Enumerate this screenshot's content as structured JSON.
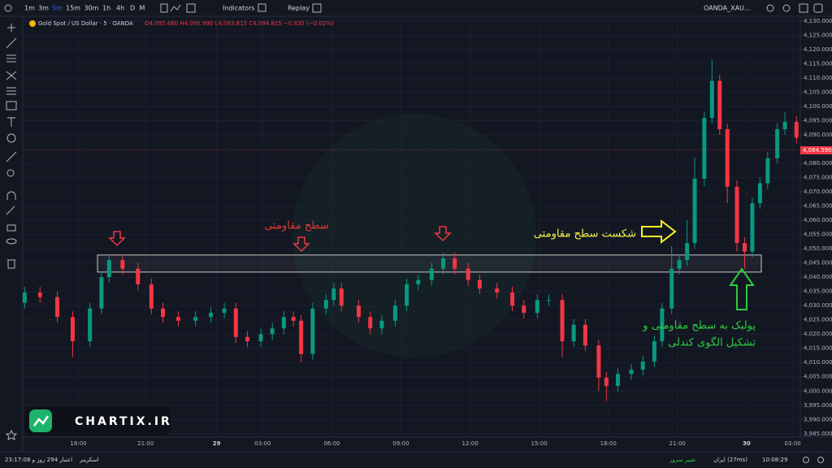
{
  "toolbar": {
    "intervals": [
      "1m",
      "3m",
      "5m",
      "15m",
      "30m",
      "1h",
      "4h",
      "D",
      "M"
    ],
    "indicators": "Indicators",
    "replay": "Replay",
    "symbol": "OANDA_XAU..."
  },
  "legend": {
    "symbol": "Gold Spot / US Dollar · 5 · OANDA",
    "ohlc": "O4,095.660 H4,095.990 L4,093.815 C4,094.815 −0.835 (−0.02%)"
  },
  "chart_data": {
    "type": "candlestick",
    "x": [
      1,
      9,
      18,
      26,
      35,
      41,
      45,
      52,
      60,
      67,
      73,
      81,
      90,
      98,
      105,
      111,
      117,
      124,
      130,
      136,
      141,
      145,
      151,
      158,
      162,
      166,
      175,
      181,
      187,
      194,
      200,
      206,
      213,
      219,
      225,
      232,
      238,
      247,
      255,
      261,
      268,
      274,
      281,
      287,
      293,
      300,
      304,
      310,
      317,
      323,
      329,
      333,
      338,
      342,
      346,
      350,
      355,
      359,
      363,
      367,
      372,
      376,
      380,
      384,
      388,
      393,
      397,
      403
    ],
    "open": [
      4031,
      4034.6,
      4033,
      4026,
      4017.5,
      4029,
      4040,
      4046,
      4043,
      4037.5,
      4029,
      4026,
      4024.7,
      4026,
      4027.5,
      4029,
      4019,
      4017.5,
      4020,
      4022,
      4026,
      4024.7,
      4013,
      4029,
      4032,
      4036,
      4030,
      4026,
      4022,
      4024.7,
      4030,
      4037.5,
      4039,
      4043,
      4046.6,
      4043,
      4039,
      4036,
      4034.6,
      4030,
      4027.5,
      4032,
      4032,
      4017.5,
      4023.3,
      4016,
      4004.7,
      4001.8,
      4006,
      4007.5,
      4010.4,
      4017.5,
      4029,
      4043,
      4046,
      4052,
      4074.6,
      4096,
      4109,
      4092,
      4071.8,
      4052,
      4049,
      4066,
      4073,
      4081.8,
      4092,
      4094.6
    ],
    "high": [
      4036.6,
      4036.6,
      4035,
      4028,
      4031,
      4042,
      4048,
      4048,
      4045,
      4039.5,
      4031,
      4028,
      4028,
      4029.5,
      4031,
      4031,
      4021,
      4022,
      4024,
      4028,
      4028,
      4026.7,
      4031,
      4034,
      4038,
      4038,
      4032,
      4028,
      4026.7,
      4032,
      4039.5,
      4041,
      4045,
      4048.6,
      4048.6,
      4045,
      4041,
      4038,
      4036.6,
      4032,
      4034,
      4034,
      4034,
      4025.3,
      4025.3,
      4018,
      4006.7,
      4008,
      4009.5,
      4012.4,
      4019.5,
      4031,
      4051,
      4048,
      4060,
      4082,
      4098,
      4116.5,
      4111,
      4094,
      4074,
      4054,
      4068,
      4075,
      4084,
      4094,
      4098,
      4096.6
    ],
    "low": [
      4029,
      4031,
      4024,
      4012,
      4015.5,
      4027,
      4038,
      4041,
      4035.5,
      4027,
      4024,
      4022.7,
      4022.7,
      4024,
      4025.5,
      4017,
      4015.5,
      4015.5,
      4018,
      4020,
      4022.7,
      4010,
      4011,
      4027,
      4030,
      4028,
      4024,
      4020,
      4020,
      4022.7,
      4028,
      4035.5,
      4037,
      4041,
      4041,
      4037,
      4034,
      4032.6,
      4028,
      4025.5,
      4025.5,
      4030,
      4012,
      4015.5,
      4014,
      4000,
      3996.5,
      3999.8,
      4004,
      4005.5,
      4008.4,
      4015.5,
      4027,
      4041,
      4044,
      4050,
      4072,
      4094,
      4090,
      4066,
      4049,
      4043,
      4047,
      4064,
      4071,
      4080,
      4090,
      4087
    ],
    "close": [
      4034.6,
      4033,
      4026,
      4017.5,
      4029,
      4040,
      4046,
      4043,
      4037.5,
      4029,
      4026,
      4024.7,
      4026,
      4027.5,
      4029,
      4019,
      4017.5,
      4020,
      4022,
      4026,
      4024.7,
      4013,
      4029,
      4032,
      4036,
      4030,
      4026,
      4022,
      4024.7,
      4030,
      4037.5,
      4039,
      4043,
      4046.6,
      4043,
      4039,
      4036,
      4034.6,
      4030,
      4027.5,
      4032,
      4032,
      4017.5,
      4023.3,
      4016,
      4004.7,
      4001.8,
      4006,
      4007.5,
      4010.4,
      4017.5,
      4029,
      4043,
      4046,
      4052,
      4074.6,
      4096,
      4109,
      4092,
      4071.8,
      4052,
      4049,
      4066,
      4073,
      4081.8,
      4092,
      4094.6,
      4089
    ],
    "up_color": "#089981",
    "down_color": "#f23645",
    "xlim": [
      0,
      405
    ],
    "xticks": [
      {
        "value": 29,
        "label": "18:00"
      },
      {
        "value": 64,
        "label": "21:00"
      },
      {
        "value": 101,
        "label": "29"
      },
      {
        "value": 125,
        "label": "03:00"
      },
      {
        "value": 161,
        "label": "06:00"
      },
      {
        "value": 197,
        "label": "09:00"
      },
      {
        "value": 233,
        "label": "12:00"
      },
      {
        "value": 269,
        "label": "15:00"
      },
      {
        "value": 305,
        "label": "18:00"
      },
      {
        "value": 341,
        "label": "21:00"
      },
      {
        "value": 377,
        "label": "30"
      },
      {
        "value": 401,
        "label": "03:00"
      }
    ],
    "ylim": [
      3983.8,
      4131.7
    ],
    "yticks": [
      {
        "value": 3985,
        "label": "3,985.000"
      },
      {
        "value": 3990,
        "label": "3,990.000"
      },
      {
        "value": 3995,
        "label": "3,995.000"
      },
      {
        "value": 4000,
        "label": "4,000.000"
      },
      {
        "value": 4005,
        "label": "4,005.000"
      },
      {
        "value": 4010,
        "label": "4,010.000"
      },
      {
        "value": 4015,
        "label": "4,015.000"
      },
      {
        "value": 4020,
        "label": "4,020.000"
      },
      {
        "value": 4025,
        "label": "4,025.000"
      },
      {
        "value": 4030,
        "label": "4,030.000"
      },
      {
        "value": 4035,
        "label": "4,035.000"
      },
      {
        "value": 4040,
        "label": "4,040.000"
      },
      {
        "value": 4045,
        "label": "4,045.000"
      },
      {
        "value": 4050,
        "label": "4,050.000"
      },
      {
        "value": 4055,
        "label": "4,055.000"
      },
      {
        "value": 4060,
        "label": "4,060.000"
      },
      {
        "value": 4065,
        "label": "4,065.000"
      },
      {
        "value": 4070,
        "label": "4,070.000"
      },
      {
        "value": 4075,
        "label": "4,075.000"
      },
      {
        "value": 4080,
        "label": "4,080.000"
      },
      {
        "value": 4085,
        "label": "4,085.000"
      },
      {
        "value": 4090,
        "label": "4,090.000"
      },
      {
        "value": 4095,
        "label": "4,095.000"
      },
      {
        "value": 4100,
        "label": "4,100.000"
      },
      {
        "value": 4105,
        "label": "4,105.000"
      },
      {
        "value": 4110,
        "label": "4,110.000"
      },
      {
        "value": 4115,
        "label": "4,115.000"
      },
      {
        "value": 4120,
        "label": "4,120.000"
      },
      {
        "value": 4125,
        "label": "4,125.000"
      },
      {
        "value": 4130,
        "label": "4,130.000"
      }
    ],
    "grid": true,
    "last_price": {
      "value": 4084.59,
      "label": "4,084.590"
    },
    "resistance_zone": [
      4041.8,
      4047.8
    ],
    "annotations": [
      "سطح مقاومتی",
      "شکست سطح مقاومتی",
      "پولبک به سطح مقاومتی و",
      "تشکیل الگوی کندلی"
    ]
  },
  "watermark": "CHARTIX.IR",
  "status_bar": {
    "subscription": "اعتبار 294 روز و 23:17:08",
    "screener": "اسکرینر",
    "change_server": "تغییر سرور",
    "server": "ایران (27ms)",
    "clock": "10:08:29"
  }
}
